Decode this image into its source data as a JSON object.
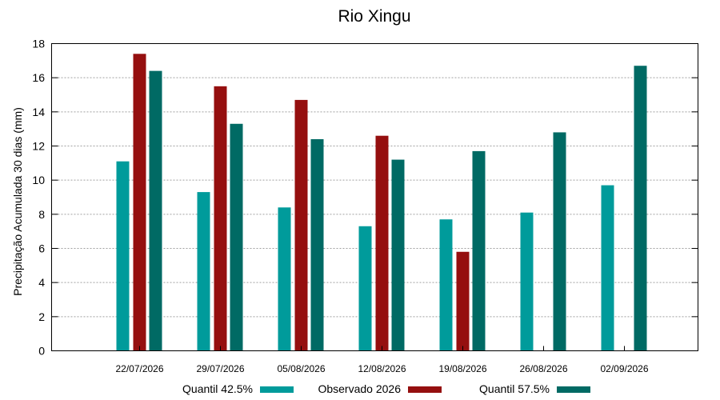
{
  "chart_data": {
    "type": "bar",
    "title": "Rio Xingu",
    "xlabel": "",
    "ylabel": "Precipitação Acumulada 30 dias (mm)",
    "ylim": [
      0,
      18
    ],
    "yticks": [
      0,
      2,
      4,
      6,
      8,
      10,
      12,
      14,
      16,
      18
    ],
    "grid": true,
    "legend_position": "bottom",
    "categories": [
      "22/07/2026",
      "29/07/2026",
      "05/08/2026",
      "12/08/2026",
      "19/08/2026",
      "26/08/2026",
      "02/09/2026"
    ],
    "series": [
      {
        "name": "Quantil 42.5%",
        "color": "#009b9b",
        "values": [
          11.1,
          9.3,
          8.4,
          7.3,
          7.7,
          8.1,
          9.7
        ]
      },
      {
        "name": "Observado 2026",
        "color": "#950f0f",
        "values": [
          17.4,
          15.5,
          14.7,
          12.6,
          5.8,
          null,
          null
        ]
      },
      {
        "name": "Quantil 57.5%",
        "color": "#006a64",
        "values": [
          16.4,
          13.3,
          12.4,
          11.2,
          11.7,
          12.8,
          16.7
        ]
      }
    ]
  }
}
